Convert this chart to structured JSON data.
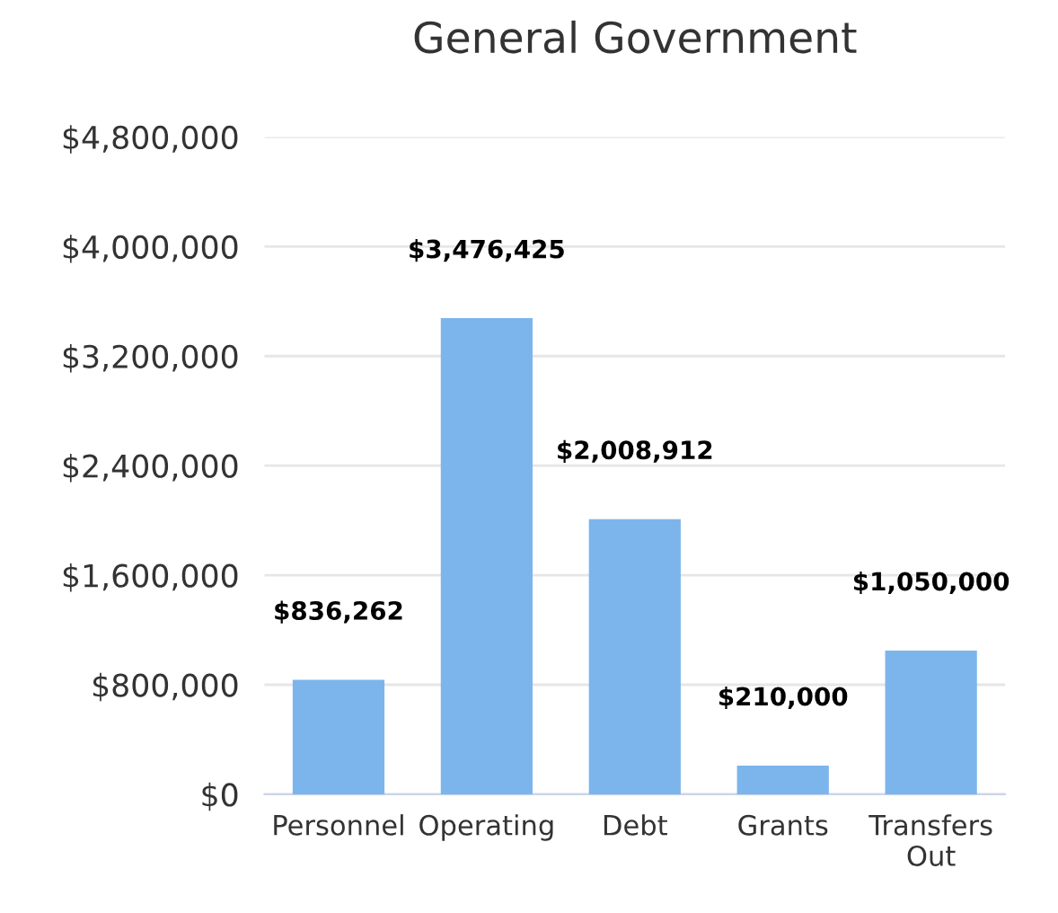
{
  "chart_data": {
    "type": "bar",
    "title": "General Government",
    "categories": [
      "Personnel",
      "Operating",
      "Debt",
      "Grants",
      "Transfers\nOut"
    ],
    "values": [
      836262,
      3476425,
      2008912,
      210000,
      1050000
    ],
    "value_labels": [
      "$836,262",
      "$3,476,425",
      "$2,008,912",
      "$210,000",
      "$1,050,000"
    ],
    "color": "#7cb5ec",
    "ylim": [
      0,
      4800000
    ],
    "yticks": [
      {
        "value": 0,
        "label": "$0"
      },
      {
        "value": 800000,
        "label": "$800,000"
      },
      {
        "value": 1600000,
        "label": "$1,600,000"
      },
      {
        "value": 2400000,
        "label": "$2,400,000"
      },
      {
        "value": 3200000,
        "label": "$3,200,000"
      },
      {
        "value": 4000000,
        "label": "$4,000,000"
      },
      {
        "value": 4800000,
        "label": "$4,800,000"
      }
    ],
    "grid": "y",
    "legend": false
  }
}
